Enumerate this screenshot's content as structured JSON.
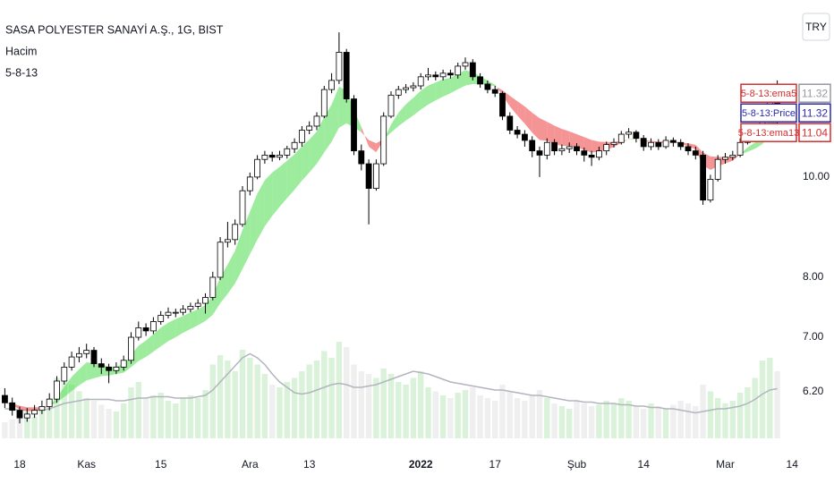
{
  "chart_data": {
    "type": "candlestick",
    "title": "SASA POLYESTER SANAYİ A.Ş., 1G, BIST",
    "legend_items": [
      "Hacim",
      "5-8-13"
    ],
    "currency": "TRY",
    "price_tags": [
      "5-8-13:ema5",
      "5-8-13:Price",
      "5-8-13:ema13"
    ],
    "log_scale": true,
    "grid": false,
    "ylim": [
      5.59,
      14.83
    ],
    "yticks": [
      {
        "value": 10,
        "label": "10.00"
      },
      {
        "value": 8,
        "label": "8.00"
      },
      {
        "value": 7,
        "label": "7.00"
      },
      {
        "value": 6.2,
        "label": "6.20"
      }
    ],
    "vlim": [
      0,
      100
    ],
    "categories": [
      null,
      null,
      "18",
      null,
      null,
      null,
      null,
      null,
      null,
      null,
      null,
      "Kas",
      null,
      null,
      null,
      null,
      null,
      null,
      null,
      null,
      null,
      "15",
      null,
      null,
      null,
      null,
      null,
      null,
      null,
      null,
      null,
      null,
      null,
      "Ara",
      null,
      null,
      null,
      null,
      null,
      null,
      null,
      "13",
      null,
      null,
      null,
      null,
      null,
      null,
      null,
      null,
      null,
      null,
      null,
      null,
      null,
      null,
      "2022",
      null,
      null,
      null,
      null,
      null,
      null,
      null,
      null,
      null,
      "17",
      null,
      null,
      null,
      null,
      null,
      null,
      null,
      null,
      null,
      null,
      "Şub",
      null,
      null,
      null,
      null,
      null,
      null,
      null,
      null,
      "14",
      null,
      null,
      null,
      null,
      null,
      null,
      null,
      null,
      null,
      null,
      "Mar",
      null,
      null,
      null,
      null,
      null,
      null,
      null,
      null,
      "14"
    ],
    "open": [
      6.15,
      6.05,
      5.95,
      5.85,
      5.9,
      5.95,
      6.0,
      6.1,
      6.35,
      6.55,
      6.7,
      6.75,
      6.8,
      6.6,
      6.55,
      6.5,
      6.55,
      6.65,
      7.0,
      7.15,
      7.1,
      7.25,
      7.35,
      7.4,
      7.4,
      7.45,
      7.5,
      7.55,
      7.65,
      8.0,
      8.65,
      8.7,
      9.0,
      9.7,
      10.0,
      10.4,
      10.5,
      10.45,
      10.5,
      10.65,
      10.8,
      11.1,
      11.2,
      11.45,
      12.15,
      12.4,
      13.2,
      11.9,
      10.6,
      10.3,
      9.75,
      10.3,
      11.45,
      12.0,
      12.15,
      12.2,
      12.25,
      12.5,
      12.55,
      12.5,
      12.6,
      12.55,
      12.8,
      12.9,
      12.5,
      12.3,
      12.15,
      12.05,
      11.45,
      11.1,
      11.0,
      10.85,
      10.6,
      10.5,
      10.8,
      10.6,
      10.65,
      10.7,
      10.6,
      10.5,
      10.45,
      10.6,
      10.75,
      10.8,
      11.0,
      11.05,
      10.9,
      10.7,
      10.8,
      10.7,
      10.85,
      10.8,
      10.7,
      10.6,
      10.5,
      9.5,
      9.95,
      10.4,
      10.45,
      10.5,
      10.8,
      11.0,
      11.05,
      11.45,
      12.3,
      null,
      null
    ],
    "high": [
      6.25,
      6.12,
      6.0,
      5.98,
      6.02,
      6.08,
      6.18,
      6.42,
      6.62,
      6.78,
      6.85,
      6.9,
      6.85,
      6.68,
      6.6,
      6.62,
      6.72,
      7.08,
      7.25,
      7.22,
      7.32,
      7.42,
      7.48,
      7.46,
      7.52,
      7.56,
      7.62,
      7.72,
      8.1,
      8.75,
      9.05,
      9.1,
      9.8,
      10.1,
      10.5,
      10.6,
      10.58,
      10.6,
      10.72,
      10.9,
      11.2,
      11.32,
      11.55,
      12.25,
      12.6,
      13.8,
      13.3,
      12.0,
      10.75,
      10.4,
      10.4,
      11.55,
      12.1,
      12.25,
      12.3,
      12.35,
      12.6,
      12.75,
      12.65,
      12.7,
      12.7,
      12.9,
      13.05,
      13.0,
      12.6,
      12.4,
      12.25,
      12.1,
      11.55,
      11.2,
      11.1,
      10.95,
      10.7,
      10.9,
      10.88,
      10.75,
      10.8,
      10.78,
      10.68,
      10.6,
      10.7,
      10.82,
      10.9,
      11.08,
      11.15,
      11.1,
      10.98,
      10.9,
      10.88,
      10.95,
      10.92,
      10.88,
      10.78,
      10.7,
      10.6,
      10.05,
      10.5,
      10.55,
      10.6,
      10.9,
      11.1,
      11.15,
      11.55,
      12.25,
      12.4,
      null,
      null
    ],
    "low": [
      5.98,
      5.88,
      5.78,
      5.8,
      5.85,
      5.9,
      5.95,
      6.05,
      6.3,
      6.5,
      6.62,
      6.68,
      6.55,
      6.45,
      6.32,
      6.45,
      6.5,
      6.6,
      6.95,
      7.02,
      7.05,
      7.2,
      7.3,
      7.32,
      7.35,
      7.4,
      7.45,
      7.38,
      7.6,
      7.95,
      8.55,
      8.6,
      8.95,
      9.6,
      9.95,
      10.3,
      10.35,
      10.38,
      10.42,
      10.55,
      10.7,
      11.0,
      11.1,
      11.4,
      12.05,
      12.3,
      11.8,
      10.5,
      10.15,
      9.0,
      9.7,
      10.25,
      11.4,
      11.9,
      12.05,
      12.1,
      12.15,
      12.4,
      12.4,
      12.4,
      12.45,
      12.45,
      12.7,
      12.4,
      12.2,
      12.05,
      11.95,
      11.35,
      11.0,
      10.9,
      10.7,
      10.45,
      10.0,
      10.4,
      10.5,
      10.5,
      10.55,
      10.5,
      10.35,
      10.25,
      10.38,
      10.5,
      10.68,
      10.75,
      10.9,
      10.8,
      10.6,
      10.62,
      10.62,
      10.65,
      10.7,
      10.62,
      10.5,
      10.4,
      9.4,
      9.45,
      9.9,
      10.3,
      10.38,
      10.45,
      10.75,
      10.9,
      11.0,
      11.4,
      11.2,
      null,
      null
    ],
    "close": [
      6.05,
      5.95,
      5.85,
      5.9,
      5.95,
      6.0,
      6.1,
      6.35,
      6.55,
      6.7,
      6.75,
      6.8,
      6.6,
      6.55,
      6.5,
      6.55,
      6.65,
      7.0,
      7.15,
      7.1,
      7.25,
      7.35,
      7.4,
      7.4,
      7.45,
      7.5,
      7.55,
      7.65,
      8.0,
      8.65,
      8.7,
      9.0,
      9.7,
      10.0,
      10.4,
      10.5,
      10.45,
      10.5,
      10.65,
      10.8,
      11.1,
      11.2,
      11.45,
      12.15,
      12.4,
      13.2,
      11.9,
      10.6,
      10.3,
      9.75,
      10.3,
      11.45,
      12.0,
      12.15,
      12.2,
      12.25,
      12.5,
      12.55,
      12.5,
      12.6,
      12.55,
      12.8,
      12.9,
      12.5,
      12.3,
      12.15,
      12.05,
      11.45,
      11.1,
      11.0,
      10.85,
      10.6,
      10.5,
      10.8,
      10.6,
      10.65,
      10.7,
      10.6,
      10.5,
      10.45,
      10.6,
      10.75,
      10.8,
      11.0,
      11.05,
      10.9,
      10.7,
      10.8,
      10.7,
      10.85,
      10.8,
      10.7,
      10.6,
      10.5,
      9.5,
      9.95,
      10.4,
      10.45,
      10.5,
      10.8,
      11.0,
      11.05,
      11.45,
      12.15,
      11.32,
      null,
      null
    ],
    "ema5": [
      6.05,
      6.02,
      5.96,
      5.94,
      5.94,
      5.96,
      6.01,
      6.12,
      6.27,
      6.41,
      6.52,
      6.62,
      6.61,
      6.59,
      6.56,
      6.56,
      6.59,
      6.73,
      6.87,
      6.95,
      7.05,
      7.15,
      7.23,
      7.29,
      7.34,
      7.4,
      7.45,
      7.52,
      7.68,
      8.0,
      8.23,
      8.49,
      8.89,
      9.26,
      9.64,
      9.93,
      10.1,
      10.23,
      10.37,
      10.52,
      10.71,
      10.87,
      11.07,
      11.43,
      11.75,
      12.23,
      12.12,
      11.62,
      11.18,
      10.7,
      10.57,
      10.86,
      11.24,
      11.54,
      11.76,
      11.93,
      12.12,
      12.26,
      12.34,
      12.43,
      12.47,
      12.58,
      12.69,
      12.62,
      12.52,
      12.39,
      12.28,
      12.0,
      11.7,
      11.47,
      11.26,
      11.04,
      10.86,
      10.84,
      10.76,
      10.72,
      10.72,
      10.68,
      10.62,
      10.56,
      10.58,
      10.63,
      10.69,
      10.79,
      10.88,
      10.89,
      10.82,
      10.82,
      10.78,
      10.8,
      10.8,
      10.77,
      10.71,
      10.64,
      10.26,
      10.16,
      10.24,
      10.31,
      10.37,
      10.52,
      10.68,
      10.8,
      11.02,
      11.4,
      11.32,
      null,
      null
    ],
    "ema13": [
      6.05,
      6.04,
      6.01,
      5.99,
      5.99,
      5.99,
      6.01,
      6.05,
      6.13,
      6.21,
      6.29,
      6.36,
      6.39,
      6.42,
      6.43,
      6.45,
      6.47,
      6.55,
      6.64,
      6.7,
      6.78,
      6.86,
      6.94,
      7.0,
      7.07,
      7.13,
      7.19,
      7.26,
      7.36,
      7.55,
      7.71,
      7.89,
      8.15,
      8.42,
      8.7,
      8.96,
      9.17,
      9.36,
      9.54,
      9.72,
      9.92,
      10.1,
      10.3,
      10.56,
      10.82,
      11.16,
      11.27,
      11.17,
      11.05,
      10.86,
      10.78,
      10.88,
      11.04,
      11.2,
      11.34,
      11.47,
      11.62,
      11.75,
      11.86,
      11.96,
      12.05,
      12.16,
      12.26,
      12.3,
      12.3,
      12.28,
      12.24,
      12.13,
      11.98,
      11.84,
      11.7,
      11.54,
      11.4,
      11.31,
      11.21,
      11.13,
      11.07,
      11.0,
      10.93,
      10.86,
      10.82,
      10.81,
      10.81,
      10.84,
      10.87,
      10.87,
      10.85,
      10.84,
      10.82,
      10.83,
      10.82,
      10.8,
      10.78,
      10.74,
      10.56,
      10.47,
      10.46,
      10.46,
      10.47,
      10.51,
      10.58,
      10.65,
      10.76,
      10.96,
      11.04,
      null,
      null
    ],
    "volume": [
      12,
      14,
      18,
      20,
      16,
      22,
      30,
      45,
      52,
      40,
      35,
      30,
      28,
      25,
      22,
      20,
      26,
      38,
      42,
      30,
      32,
      34,
      28,
      26,
      30,
      32,
      30,
      36,
      55,
      62,
      58,
      50,
      66,
      60,
      55,
      48,
      40,
      38,
      42,
      45,
      50,
      55,
      58,
      65,
      60,
      72,
      68,
      55,
      50,
      48,
      45,
      52,
      48,
      42,
      40,
      45,
      50,
      38,
      35,
      32,
      30,
      34,
      36,
      38,
      32,
      30,
      28,
      40,
      35,
      30,
      28,
      32,
      36,
      30,
      26,
      24,
      22,
      28,
      26,
      24,
      25,
      28,
      26,
      30,
      28,
      24,
      22,
      26,
      24,
      22,
      25,
      28,
      26,
      24,
      40,
      35,
      30,
      26,
      28,
      34,
      38,
      45,
      58,
      60,
      50,
      null,
      null
    ],
    "volume_ma": [
      22,
      22,
      21,
      21,
      21,
      21,
      22,
      24,
      26,
      27,
      28,
      29,
      29,
      29,
      29,
      28,
      28,
      29,
      30,
      30,
      31,
      31,
      31,
      30,
      30,
      30,
      31,
      32,
      36,
      42,
      48,
      54,
      60,
      63,
      60,
      55,
      48,
      42,
      38,
      34,
      33,
      34,
      36,
      38,
      40,
      41,
      40,
      38,
      38,
      39,
      40,
      42,
      44,
      46,
      48,
      50,
      49,
      48,
      46,
      44,
      42,
      41,
      40,
      39,
      38,
      37,
      36,
      36,
      35,
      34,
      33,
      32,
      32,
      31,
      30,
      29,
      28,
      28,
      27,
      27,
      26,
      26,
      26,
      25,
      25,
      24,
      24,
      23,
      23,
      22,
      22,
      21,
      20,
      19,
      20,
      21,
      22,
      22,
      23,
      24,
      26,
      29,
      33,
      36,
      37,
      null,
      null
    ]
  }
}
